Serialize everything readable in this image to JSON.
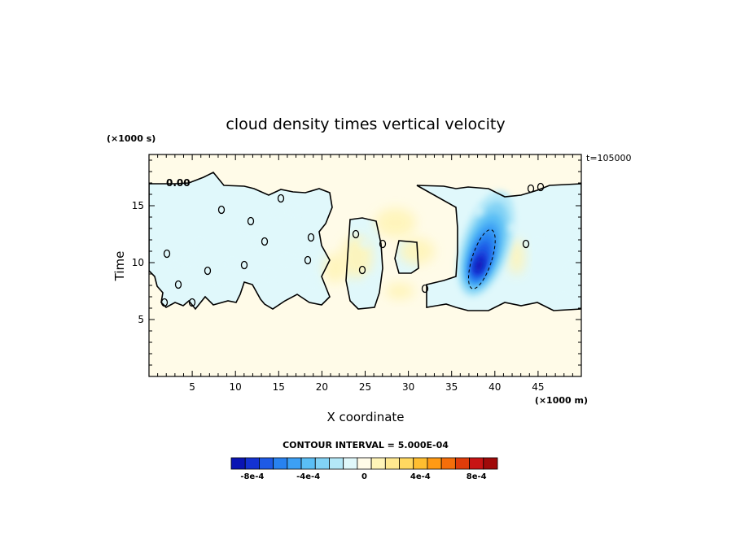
{
  "chart_data": {
    "type": "heatmap",
    "title": "cloud density times vertical velocity",
    "xlabel": "X coordinate",
    "ylabel": "Time",
    "x_unit": "(×1000 m)",
    "y_unit": "(×1000 s)",
    "time_label": "t=105000",
    "xlim": [
      0,
      50
    ],
    "ylim": [
      0,
      19.5
    ],
    "x_ticks": [
      5,
      10,
      15,
      20,
      25,
      30,
      35,
      40,
      45
    ],
    "y_ticks": [
      5,
      10,
      15
    ],
    "contour_interval_label": "CONTOUR INTERVAL = 5.000E-04",
    "contour_labels": [
      "0.00"
    ],
    "colorbar": {
      "colors": [
        "#0a14b4",
        "#1432d2",
        "#1e5ae6",
        "#2882f0",
        "#3ca0f5",
        "#5abef5",
        "#82d2f5",
        "#b4e8f8",
        "#e0f8fb",
        "#fffbe8",
        "#fff4b8",
        "#ffe890",
        "#ffd860",
        "#ffbe30",
        "#ff9a14",
        "#f56e0a",
        "#e03c0a",
        "#c81414",
        "#a00a0a"
      ],
      "tick_labels": [
        "-8e-4",
        "-4e-4",
        "0",
        "4e-4",
        "8e-4"
      ],
      "tick_values": [
        -0.0008,
        -0.0004,
        0,
        0.0004,
        0.0008
      ]
    },
    "features": [
      {
        "name": "minimum core",
        "x": 38.5,
        "y": 10,
        "value": -0.0009
      },
      {
        "name": "negative region",
        "x": 38.5,
        "y": 12,
        "value": -0.0005
      },
      {
        "name": "positive patch",
        "x": 24,
        "y": 10,
        "value": 0.0002
      },
      {
        "name": "positive patch",
        "x": 29,
        "y": 12,
        "value": 0.0001
      }
    ]
  }
}
